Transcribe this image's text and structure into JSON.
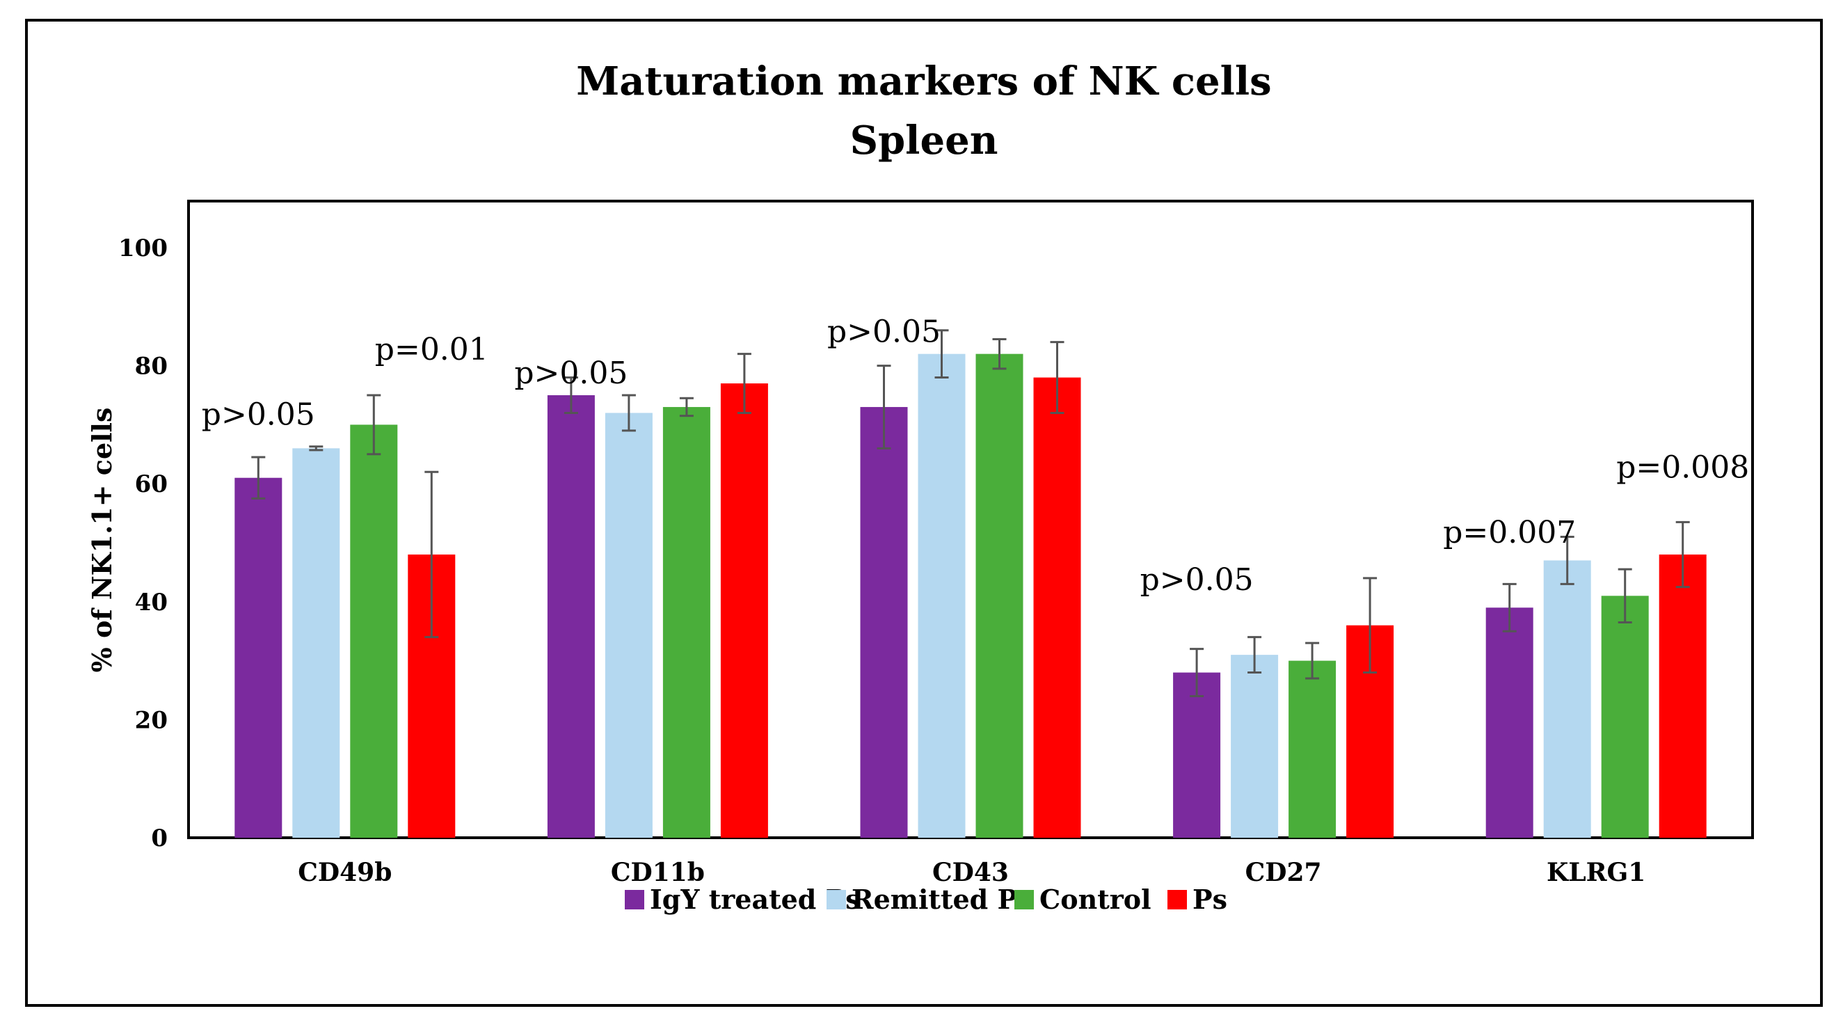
{
  "chart_data": {
    "type": "bar",
    "title": "Maturation markers of NK cells",
    "subtitle": "Spleen",
    "xlabel": "",
    "ylabel": "% of NK1.1+ cells",
    "ylim": [
      0,
      110
    ],
    "yticks": [
      0,
      20,
      40,
      60,
      80,
      100
    ],
    "grid": false,
    "legend_position": "bottom",
    "categories": [
      "CD49b",
      "CD11b",
      "CD43",
      "CD27",
      "KLRG1"
    ],
    "series": [
      {
        "name": "IgY treated Ps",
        "color": "#7B2A9E",
        "values": [
          61,
          75,
          73,
          28,
          39
        ],
        "errors": [
          3.5,
          3,
          7,
          4,
          4
        ]
      },
      {
        "name": "Remitted Ps",
        "color": "#B4D8F0",
        "values": [
          66,
          72,
          82,
          31,
          47
        ],
        "errors": [
          0.3,
          3,
          4,
          3,
          4
        ]
      },
      {
        "name": "Control",
        "color": "#4AAE3A",
        "values": [
          70,
          73,
          82,
          30,
          41
        ],
        "errors": [
          5,
          1.5,
          2.5,
          3,
          4.5
        ]
      },
      {
        "name": "Ps",
        "color": "#FF0000",
        "values": [
          48,
          77,
          78,
          36,
          48
        ],
        "errors": [
          14,
          5,
          6,
          8,
          5.5
        ]
      }
    ],
    "annotations": [
      {
        "text": "p>0.05",
        "category": 0,
        "series": 0,
        "y": 70
      },
      {
        "text": "p=0.01",
        "category": 0,
        "series": 3,
        "y": 81
      },
      {
        "text": "p>0.05",
        "category": 1,
        "series": 0,
        "y": 77
      },
      {
        "text": "p>0.05",
        "category": 2,
        "series": 0,
        "y": 84
      },
      {
        "text": "p>0.05",
        "category": 3,
        "series": 0,
        "y": 42
      },
      {
        "text": "p=0.007",
        "category": 4,
        "series": 0,
        "y": 50
      },
      {
        "text": "p=0.008",
        "category": 4,
        "series": 3,
        "y": 61
      }
    ]
  }
}
